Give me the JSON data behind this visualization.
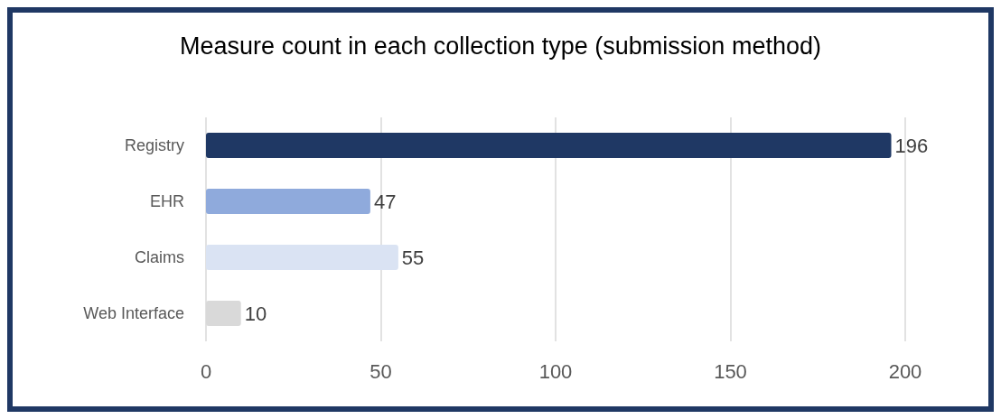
{
  "chart_data": {
    "type": "bar",
    "orientation": "horizontal",
    "title": "Measure count in each collection type (submission method)",
    "categories": [
      "Registry",
      "EHR",
      "Claims",
      "Web Interface"
    ],
    "values": [
      196,
      47,
      55,
      10
    ],
    "colors": [
      "#1f3864",
      "#8faadc",
      "#dae3f3",
      "#d9d9d9"
    ],
    "xlim": [
      0,
      200
    ],
    "xticks": [
      0,
      50,
      100,
      150,
      200
    ],
    "grid": "x",
    "data_labels": true
  }
}
